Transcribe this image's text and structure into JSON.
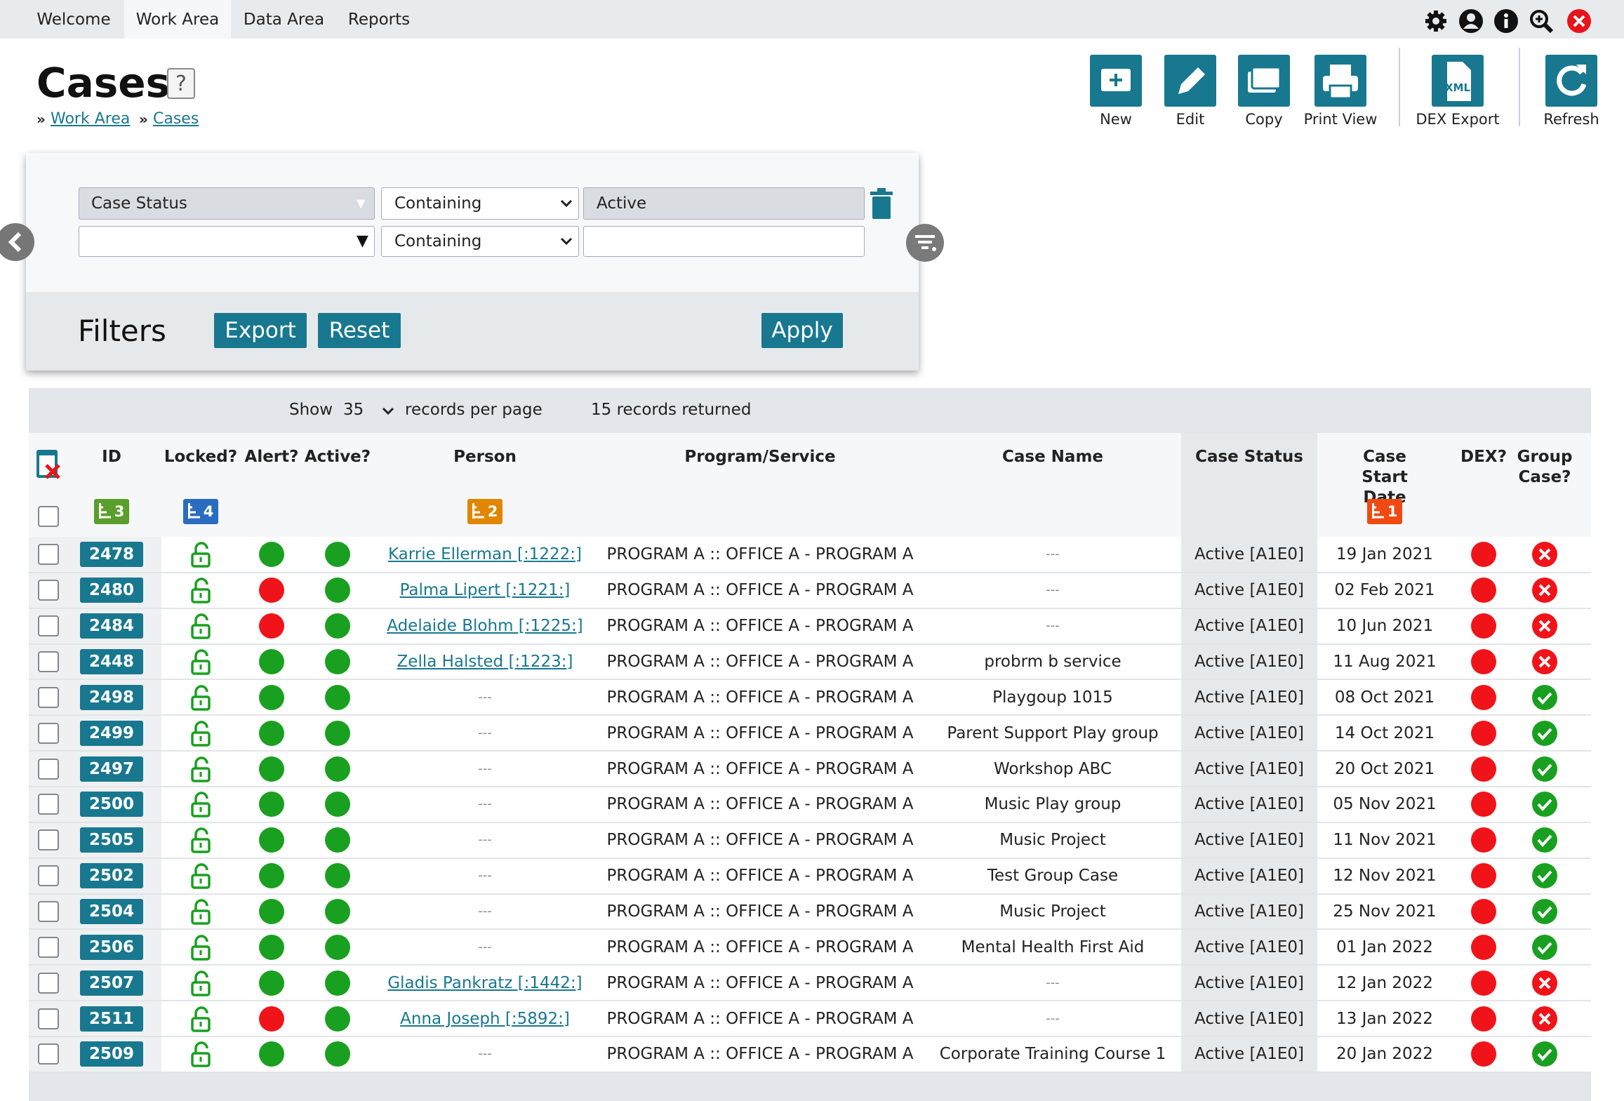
{
  "nav": {
    "tabs": [
      "Welcome",
      "Work Area",
      "Data Area",
      "Reports"
    ],
    "active": 1
  },
  "header": {
    "title": "Cases",
    "help": "?",
    "breadcrumb": [
      "Work Area",
      "Cases"
    ]
  },
  "toolbar": [
    "New",
    "Edit",
    "Copy",
    "Print View",
    "DEX Export",
    "Refresh"
  ],
  "filters": {
    "title": "Filters",
    "rows": [
      {
        "field": "Case Status",
        "operator": "Containing",
        "value": "Active"
      },
      {
        "operator": "Containing"
      }
    ],
    "buttons": [
      "Export",
      "Reset",
      "Apply"
    ]
  },
  "table": {
    "show_label": "Show",
    "per_page": 35,
    "per_page_label": "records per page",
    "returned": "15 records returned",
    "sorted_column": 7,
    "columns": [
      {
        "label": "ID",
        "sort": 3,
        "sort_color": "#5a9e2c"
      },
      {
        "label": "Locked?",
        "sort": 4,
        "sort_color": "#2a6cbf"
      },
      {
        "label": "Alert?"
      },
      {
        "label": "Active?"
      },
      {
        "label": "Person",
        "sort": 2,
        "sort_color": "#e08600"
      },
      {
        "label": "Program/Service"
      },
      {
        "label": "Case Name"
      },
      {
        "label": "Case Status"
      },
      {
        "label": "Case Start Date",
        "sort": 1,
        "sort_color": "#f04a12"
      },
      {
        "label": "DEX?"
      },
      {
        "label": "Group Case?"
      }
    ],
    "rows": [
      {
        "id": 2478,
        "alert": "green",
        "person": "Karrie Ellerman [:1222:]",
        "program": "PROGRAM A :: OFFICE A - PROGRAM A",
        "case_name": "---",
        "status": "Active [A1E0]",
        "start": "19 Jan 2021",
        "group": false
      },
      {
        "id": 2480,
        "alert": "red",
        "person": "Palma Lipert [:1221:]",
        "program": "PROGRAM A :: OFFICE A - PROGRAM A",
        "case_name": "---",
        "status": "Active [A1E0]",
        "start": "02 Feb 2021",
        "group": false
      },
      {
        "id": 2484,
        "alert": "red",
        "person": "Adelaide Blohm [:1225:]",
        "program": "PROGRAM A :: OFFICE A - PROGRAM A",
        "case_name": "---",
        "status": "Active [A1E0]",
        "start": "10 Jun 2021",
        "group": false
      },
      {
        "id": 2448,
        "alert": "green",
        "person": "Zella Halsted [:1223:]",
        "program": "PROGRAM A :: OFFICE A - PROGRAM A",
        "case_name": "probrm b service",
        "status": "Active [A1E0]",
        "start": "11 Aug 2021",
        "group": false
      },
      {
        "id": 2498,
        "alert": "green",
        "person": "---",
        "program": "PROGRAM A :: OFFICE A - PROGRAM A",
        "case_name": "Playgoup 1015",
        "status": "Active [A1E0]",
        "start": "08 Oct 2021",
        "group": true
      },
      {
        "id": 2499,
        "alert": "green",
        "person": "---",
        "program": "PROGRAM A :: OFFICE A - PROGRAM A",
        "case_name": "Parent Support Play group",
        "status": "Active [A1E0]",
        "start": "14 Oct 2021",
        "group": true
      },
      {
        "id": 2497,
        "alert": "green",
        "person": "---",
        "program": "PROGRAM A :: OFFICE A - PROGRAM A",
        "case_name": "Workshop ABC",
        "status": "Active [A1E0]",
        "start": "20 Oct 2021",
        "group": true
      },
      {
        "id": 2500,
        "alert": "green",
        "person": "---",
        "program": "PROGRAM A :: OFFICE A - PROGRAM A",
        "case_name": "Music Play group",
        "status": "Active [A1E0]",
        "start": "05 Nov 2021",
        "group": true
      },
      {
        "id": 2505,
        "alert": "green",
        "person": "---",
        "program": "PROGRAM A :: OFFICE A - PROGRAM A",
        "case_name": "Music Project",
        "status": "Active [A1E0]",
        "start": "11 Nov 2021",
        "group": true
      },
      {
        "id": 2502,
        "alert": "green",
        "person": "---",
        "program": "PROGRAM A :: OFFICE A - PROGRAM A",
        "case_name": "Test Group Case",
        "status": "Active [A1E0]",
        "start": "12 Nov 2021",
        "group": true
      },
      {
        "id": 2504,
        "alert": "green",
        "person": "---",
        "program": "PROGRAM A :: OFFICE A - PROGRAM A",
        "case_name": "Music Project",
        "status": "Active [A1E0]",
        "start": "25 Nov 2021",
        "group": true
      },
      {
        "id": 2506,
        "alert": "green",
        "person": "---",
        "program": "PROGRAM A :: OFFICE A - PROGRAM A",
        "case_name": "Mental Health First Aid",
        "status": "Active [A1E0]",
        "start": "01 Jan 2022",
        "group": true
      },
      {
        "id": 2507,
        "alert": "green",
        "person": "Gladis Pankratz [:1442:]",
        "program": "PROGRAM A :: OFFICE A - PROGRAM A",
        "case_name": "---",
        "status": "Active [A1E0]",
        "start": "12 Jan 2022",
        "group": false
      },
      {
        "id": 2511,
        "alert": "red",
        "person": "Anna Joseph [:5892:]",
        "program": "PROGRAM A :: OFFICE A - PROGRAM A",
        "case_name": "---",
        "status": "Active [A1E0]",
        "start": "13 Jan 2022",
        "group": false
      },
      {
        "id": 2509,
        "alert": "green",
        "person": "---",
        "program": "PROGRAM A :: OFFICE A - PROGRAM A",
        "case_name": "Corporate Training Course 1",
        "status": "Active [A1E0]",
        "start": "20 Jan 2022",
        "group": true
      }
    ]
  }
}
